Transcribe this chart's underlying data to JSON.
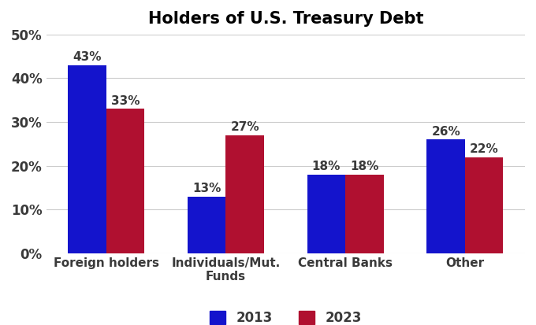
{
  "title": "Holders of U.S. Treasury Debt",
  "categories": [
    "Foreign holders",
    "Individuals/Mut.\nFunds",
    "Central Banks",
    "Other"
  ],
  "values_2013": [
    43,
    13,
    18,
    26
  ],
  "values_2023": [
    33,
    27,
    18,
    22
  ],
  "color_2013": "#1414cc",
  "color_2023": "#b01030",
  "legend_labels": [
    "2013",
    "2023"
  ],
  "ylim": [
    0,
    50
  ],
  "yticks": [
    0,
    10,
    20,
    30,
    40,
    50
  ],
  "ytick_labels": [
    "0%",
    "10%",
    "20%",
    "30%",
    "40%",
    "50%"
  ],
  "bar_width": 0.32,
  "title_fontsize": 15,
  "tick_fontsize": 12,
  "label_fontsize": 11,
  "annotation_fontsize": 11,
  "legend_fontsize": 12,
  "text_color": "#3a3a3a",
  "background_color": "#ffffff",
  "grid_color": "#cccccc"
}
